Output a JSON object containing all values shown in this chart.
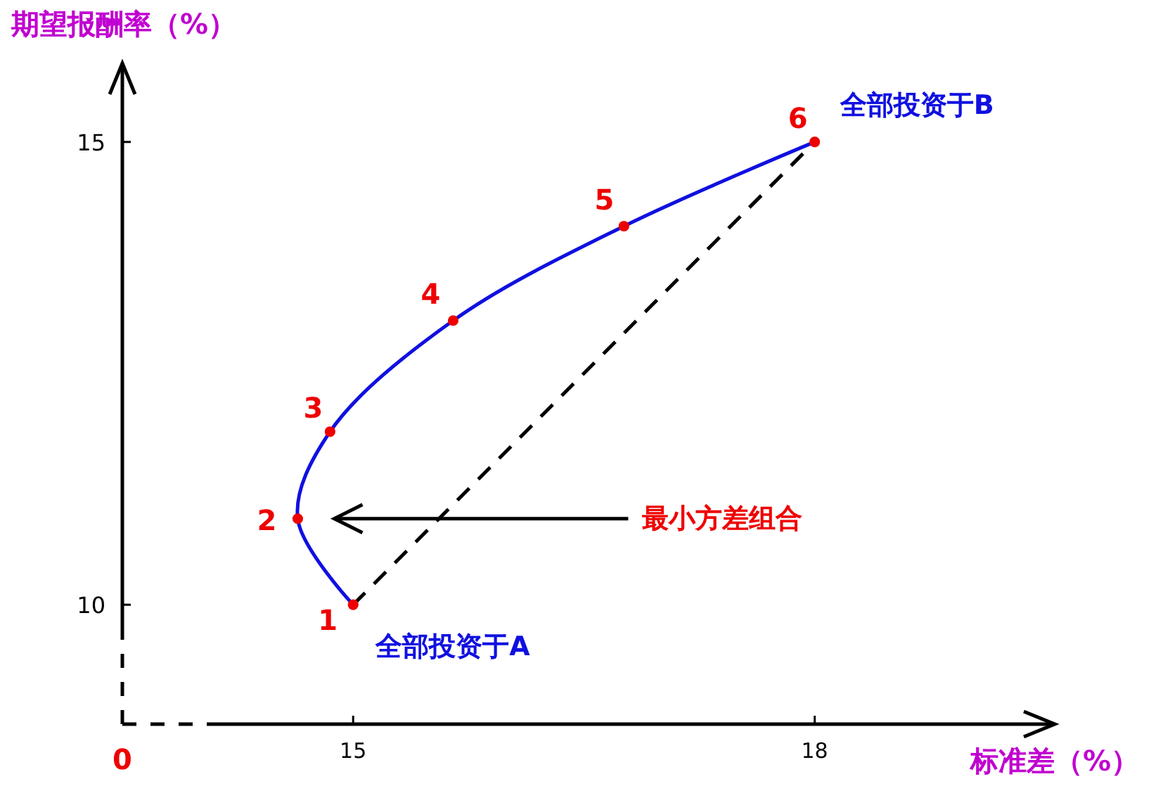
{
  "chart_data": {
    "type": "line",
    "xlabel": "标准差（%）",
    "ylabel": "期望报酬率（%）",
    "xlim": [
      13.5,
      19.56
    ],
    "ylim": [
      8.71,
      15.85
    ],
    "xticks": [
      15,
      18
    ],
    "yticks": [
      10,
      15
    ],
    "grid": false,
    "series": [
      {
        "type": "line",
        "color": "#1010e0",
        "x": [
          15,
          14.64,
          14.85,
          15.65,
          16.76,
          18
        ],
        "values": [
          10,
          10.93,
          11.87,
          13.07,
          14.09,
          15
        ]
      },
      {
        "type": "line",
        "color": "#000000",
        "line_style": "dashed",
        "x": [
          15,
          18
        ],
        "values": [
          10,
          15
        ]
      },
      {
        "type": "scatter",
        "color": "#ee0000",
        "marker": "circle",
        "x": [
          15,
          14.64,
          14.85,
          15.65,
          16.76,
          18
        ],
        "values": [
          10,
          10.93,
          11.87,
          13.07,
          14.09,
          15
        ]
      }
    ],
    "annotations": [
      {
        "text": "1",
        "x": 15,
        "y": 10
      },
      {
        "text": "2",
        "x": 14.64,
        "y": 10.93
      },
      {
        "text": "3",
        "x": 14.85,
        "y": 11.87
      },
      {
        "text": "4",
        "x": 15.65,
        "y": 13.07
      },
      {
        "text": "5",
        "x": 16.76,
        "y": 14.09
      },
      {
        "text": "6",
        "x": 18,
        "y": 15
      },
      {
        "text": "全部投资于A",
        "x": 15,
        "y": 10
      },
      {
        "text": "全部投资于B",
        "x": 18,
        "y": 15
      },
      "最小方差组合",
      "0"
    ]
  }
}
